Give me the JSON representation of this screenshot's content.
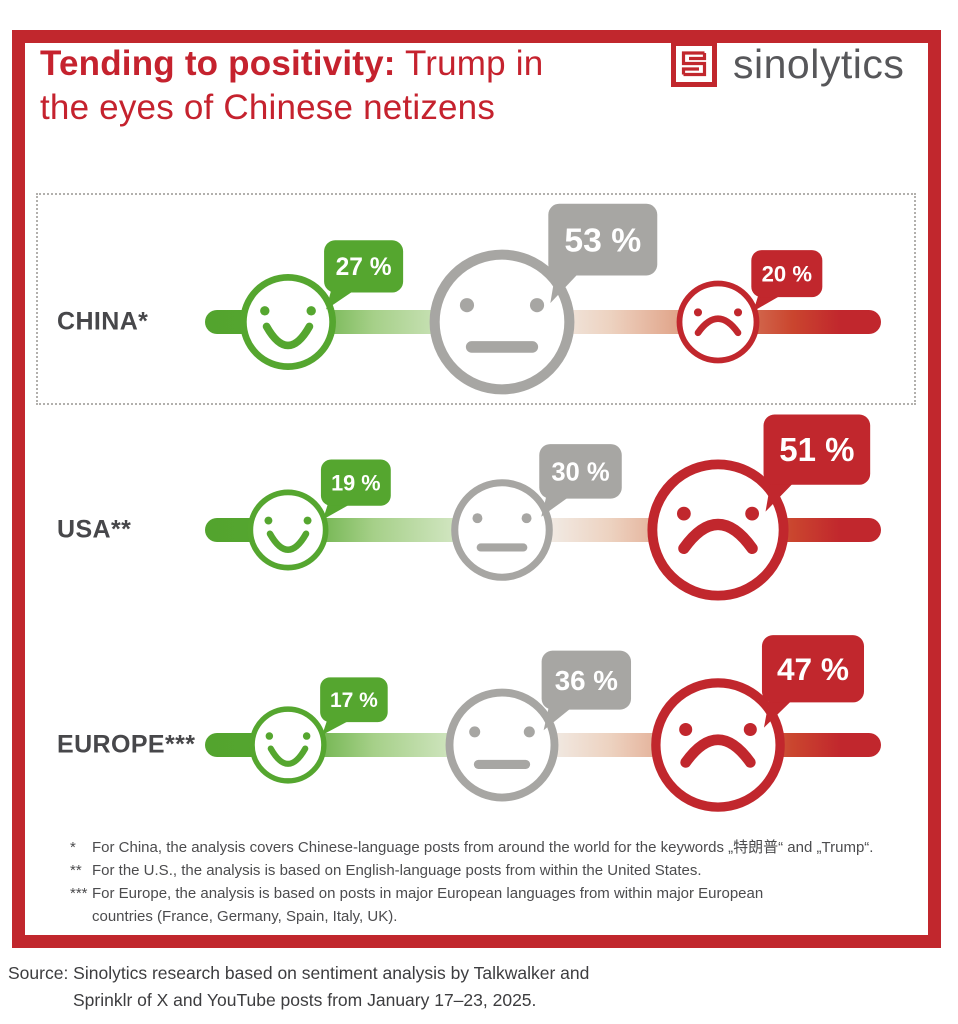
{
  "title": {
    "bold": "Tending to positivity:",
    "regular": "Trump in",
    "line2": "the eyes of Chinese netizens"
  },
  "logo": {
    "text": "sinolytics"
  },
  "chart_data": {
    "type": "sentiment_scale_bars",
    "unit": "%",
    "sentiments": [
      "positive",
      "neutral",
      "negative"
    ],
    "rows": [
      {
        "label": "CHINA*",
        "highlighted": true,
        "positive": 27,
        "neutral": 53,
        "negative": 20
      },
      {
        "label": "USA**",
        "highlighted": false,
        "positive": 19,
        "neutral": 30,
        "negative": 51
      },
      {
        "label": "EUROPE***",
        "highlighted": false,
        "positive": 17,
        "neutral": 36,
        "negative": 47
      }
    ],
    "colors": {
      "positive": "#55a62f",
      "neutral": "#a7a6a3",
      "negative": "#c1272d"
    },
    "bar_gradient": [
      "#53a42e",
      "#f2f0ec",
      "#c1272d"
    ],
    "legend_position": "none",
    "grid": false
  },
  "footnotes": [
    {
      "marker": "*",
      "lines": [
        "For China, the analysis covers Chinese-language posts from around the world for the keywords „特朗普“ and „Trump“."
      ]
    },
    {
      "marker": "**",
      "lines": [
        "For the U.S., the analysis is based on English-language posts from within the United States."
      ]
    },
    {
      "marker": "***",
      "lines": [
        "For Europe, the analysis is based on posts in major European languages from within major European",
        "countries (France, Germany, Spain, Italy, UK)."
      ]
    }
  ],
  "source": {
    "lines": [
      "Source: Sinolytics research based on sentiment analysis by Talkwalker and",
      "Sprinklr of X and YouTube posts from January 17–23, 2025."
    ]
  },
  "accent_colors": {
    "frame_red": "#c1272d",
    "title_red": "#c5222e",
    "label_gray": "#47474a"
  }
}
